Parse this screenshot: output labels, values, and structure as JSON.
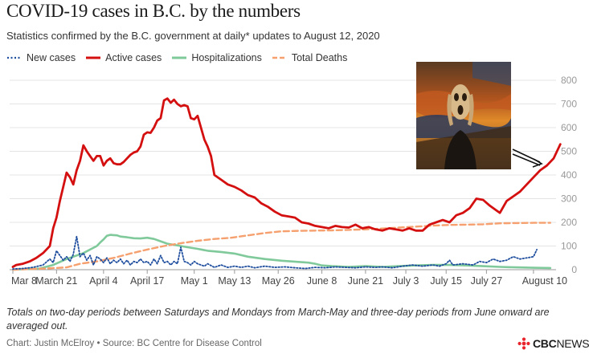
{
  "title": "COVID-19 cases in B.C. by the numbers",
  "subtitle": "Statistics confirmed by the B.C. government at daily* updates to August 12, 2020",
  "footnote": "Totals on two-day periods between Saturdays and Mondays from March-May and three-day periods from June onward are averaged out.",
  "credit": "Chart: Justin McElroy • Source: BC Centre for Disease Control",
  "logo": {
    "brand": "CBC",
    "suffix": "NEWS"
  },
  "image": {
    "subject": "The Scream painting",
    "alt_icon": "scream-painting-image"
  },
  "colors": {
    "new_cases": "#1f4e9e",
    "active_cases": "#d40f0f",
    "hospitalizations": "#7fc99a",
    "total_deaths": "#f5a06e",
    "logo": "#e8242c"
  },
  "chart_data": {
    "type": "line",
    "x_range": [
      "Mar 8",
      "Aug 12"
    ],
    "xticks": [
      {
        "label": "Mar 8",
        "day": 0
      },
      {
        "label": "March 21",
        "day": 13
      },
      {
        "label": "April 4",
        "day": 27
      },
      {
        "label": "April 17",
        "day": 40
      },
      {
        "label": "May 1",
        "day": 54
      },
      {
        "label": "May 13",
        "day": 66
      },
      {
        "label": "May 26",
        "day": 79
      },
      {
        "label": "June 8",
        "day": 92
      },
      {
        "label": "June 21",
        "day": 105
      },
      {
        "label": "July 3",
        "day": 117
      },
      {
        "label": "July 15",
        "day": 129
      },
      {
        "label": "July 27",
        "day": 141
      },
      {
        "label": "August 10",
        "day": 155
      }
    ],
    "ylim": [
      0,
      800
    ],
    "yticks": [
      "0",
      "100",
      "200",
      "300",
      "400",
      "500",
      "600",
      "700",
      "800"
    ],
    "grid": true,
    "legend_position": "top-left",
    "series": [
      {
        "name": "New cases",
        "style": "dotted",
        "colorKey": "new_cases",
        "points": [
          [
            0,
            3
          ],
          [
            3,
            5
          ],
          [
            6,
            10
          ],
          [
            9,
            20
          ],
          [
            11,
            45
          ],
          [
            12,
            30
          ],
          [
            13,
            80
          ],
          [
            14,
            60
          ],
          [
            15,
            40
          ],
          [
            16,
            55
          ],
          [
            17,
            35
          ],
          [
            18,
            65
          ],
          [
            19,
            140
          ],
          [
            20,
            55
          ],
          [
            21,
            70
          ],
          [
            22,
            40
          ],
          [
            23,
            60
          ],
          [
            24,
            20
          ],
          [
            25,
            55
          ],
          [
            26,
            45
          ],
          [
            27,
            30
          ],
          [
            28,
            50
          ],
          [
            29,
            25
          ],
          [
            30,
            40
          ],
          [
            31,
            30
          ],
          [
            32,
            45
          ],
          [
            33,
            25
          ],
          [
            34,
            40
          ],
          [
            35,
            20
          ],
          [
            36,
            35
          ],
          [
            37,
            30
          ],
          [
            38,
            45
          ],
          [
            39,
            30
          ],
          [
            40,
            35
          ],
          [
            41,
            20
          ],
          [
            42,
            45
          ],
          [
            43,
            25
          ],
          [
            44,
            60
          ],
          [
            45,
            30
          ],
          [
            46,
            35
          ],
          [
            47,
            20
          ],
          [
            48,
            35
          ],
          [
            49,
            25
          ],
          [
            50,
            95
          ],
          [
            51,
            35
          ],
          [
            52,
            30
          ],
          [
            53,
            20
          ],
          [
            54,
            35
          ],
          [
            55,
            25
          ],
          [
            56,
            20
          ],
          [
            57,
            15
          ],
          [
            58,
            25
          ],
          [
            60,
            10
          ],
          [
            62,
            20
          ],
          [
            64,
            10
          ],
          [
            66,
            15
          ],
          [
            68,
            10
          ],
          [
            70,
            15
          ],
          [
            72,
            8
          ],
          [
            75,
            15
          ],
          [
            78,
            10
          ],
          [
            81,
            12
          ],
          [
            84,
            8
          ],
          [
            87,
            5
          ],
          [
            90,
            10
          ],
          [
            93,
            8
          ],
          [
            96,
            12
          ],
          [
            99,
            10
          ],
          [
            102,
            8
          ],
          [
            105,
            12
          ],
          [
            108,
            10
          ],
          [
            110,
            12
          ],
          [
            113,
            8
          ],
          [
            116,
            15
          ],
          [
            119,
            20
          ],
          [
            122,
            15
          ],
          [
            125,
            20
          ],
          [
            127,
            15
          ],
          [
            129,
            25
          ],
          [
            130,
            40
          ],
          [
            131,
            20
          ],
          [
            134,
            25
          ],
          [
            137,
            20
          ],
          [
            139,
            35
          ],
          [
            141,
            30
          ],
          [
            143,
            45
          ],
          [
            145,
            35
          ],
          [
            147,
            40
          ],
          [
            149,
            55
          ],
          [
            151,
            45
          ],
          [
            153,
            50
          ],
          [
            155,
            55
          ],
          [
            156,
            85
          ]
        ]
      },
      {
        "name": "Active cases",
        "style": "solid",
        "colorKey": "active_cases",
        "points": [
          [
            0,
            12
          ],
          [
            1,
            20
          ],
          [
            3,
            25
          ],
          [
            5,
            35
          ],
          [
            7,
            50
          ],
          [
            9,
            70
          ],
          [
            11,
            100
          ],
          [
            12,
            175
          ],
          [
            13,
            220
          ],
          [
            14,
            290
          ],
          [
            15,
            350
          ],
          [
            16,
            410
          ],
          [
            17,
            390
          ],
          [
            18,
            360
          ],
          [
            19,
            420
          ],
          [
            20,
            460
          ],
          [
            21,
            525
          ],
          [
            22,
            500
          ],
          [
            23,
            480
          ],
          [
            24,
            460
          ],
          [
            25,
            480
          ],
          [
            26,
            480
          ],
          [
            27,
            440
          ],
          [
            28,
            460
          ],
          [
            29,
            470
          ],
          [
            30,
            450
          ],
          [
            31,
            445
          ],
          [
            32,
            445
          ],
          [
            33,
            455
          ],
          [
            34,
            470
          ],
          [
            35,
            485
          ],
          [
            36,
            495
          ],
          [
            37,
            500
          ],
          [
            38,
            520
          ],
          [
            39,
            570
          ],
          [
            40,
            580
          ],
          [
            41,
            578
          ],
          [
            42,
            600
          ],
          [
            43,
            630
          ],
          [
            44,
            640
          ],
          [
            45,
            715
          ],
          [
            46,
            723
          ],
          [
            47,
            705
          ],
          [
            48,
            718
          ],
          [
            49,
            700
          ],
          [
            50,
            690
          ],
          [
            51,
            695
          ],
          [
            52,
            690
          ],
          [
            53,
            640
          ],
          [
            54,
            635
          ],
          [
            55,
            650
          ],
          [
            56,
            600
          ],
          [
            57,
            550
          ],
          [
            58,
            520
          ],
          [
            59,
            480
          ],
          [
            60,
            400
          ],
          [
            62,
            380
          ],
          [
            64,
            360
          ],
          [
            66,
            350
          ],
          [
            68,
            335
          ],
          [
            70,
            315
          ],
          [
            72,
            305
          ],
          [
            74,
            280
          ],
          [
            76,
            265
          ],
          [
            78,
            245
          ],
          [
            80,
            230
          ],
          [
            82,
            225
          ],
          [
            84,
            220
          ],
          [
            86,
            200
          ],
          [
            88,
            195
          ],
          [
            90,
            185
          ],
          [
            92,
            180
          ],
          [
            94,
            175
          ],
          [
            96,
            185
          ],
          [
            98,
            180
          ],
          [
            100,
            178
          ],
          [
            102,
            190
          ],
          [
            104,
            175
          ],
          [
            106,
            180
          ],
          [
            108,
            170
          ],
          [
            110,
            165
          ],
          [
            112,
            175
          ],
          [
            114,
            170
          ],
          [
            116,
            165
          ],
          [
            118,
            175
          ],
          [
            120,
            165
          ],
          [
            122,
            165
          ],
          [
            124,
            190
          ],
          [
            126,
            200
          ],
          [
            128,
            210
          ],
          [
            130,
            200
          ],
          [
            132,
            230
          ],
          [
            134,
            240
          ],
          [
            136,
            260
          ],
          [
            138,
            300
          ],
          [
            140,
            295
          ],
          [
            142,
            270
          ],
          [
            144,
            250
          ],
          [
            145,
            240
          ],
          [
            147,
            290
          ],
          [
            149,
            310
          ],
          [
            151,
            330
          ],
          [
            153,
            360
          ],
          [
            155,
            390
          ],
          [
            157,
            420
          ],
          [
            159,
            440
          ],
          [
            161,
            470
          ],
          [
            163,
            530
          ]
        ]
      },
      {
        "name": "Hospitalizations",
        "style": "solid",
        "colorKey": "hospitalizations",
        "points": [
          [
            0,
            0
          ],
          [
            8,
            5
          ],
          [
            12,
            20
          ],
          [
            16,
            45
          ],
          [
            19,
            60
          ],
          [
            21,
            70
          ],
          [
            23,
            85
          ],
          [
            25,
            100
          ],
          [
            26,
            115
          ],
          [
            27,
            128
          ],
          [
            28,
            143
          ],
          [
            29,
            147
          ],
          [
            30,
            146
          ],
          [
            31,
            145
          ],
          [
            32,
            140
          ],
          [
            34,
            137
          ],
          [
            36,
            133
          ],
          [
            38,
            132
          ],
          [
            40,
            135
          ],
          [
            42,
            130
          ],
          [
            44,
            120
          ],
          [
            46,
            110
          ],
          [
            48,
            105
          ],
          [
            50,
            100
          ],
          [
            52,
            95
          ],
          [
            55,
            88
          ],
          [
            58,
            80
          ],
          [
            62,
            75
          ],
          [
            66,
            68
          ],
          [
            70,
            55
          ],
          [
            75,
            45
          ],
          [
            80,
            38
          ],
          [
            85,
            33
          ],
          [
            88,
            30
          ],
          [
            90,
            25
          ],
          [
            92,
            18
          ],
          [
            95,
            15
          ],
          [
            100,
            12
          ],
          [
            105,
            15
          ],
          [
            110,
            12
          ],
          [
            115,
            15
          ],
          [
            120,
            18
          ],
          [
            125,
            20
          ],
          [
            130,
            20
          ],
          [
            135,
            18
          ],
          [
            140,
            15
          ],
          [
            145,
            12
          ],
          [
            150,
            10
          ],
          [
            155,
            8
          ],
          [
            160,
            7
          ]
        ]
      },
      {
        "name": "Total Deaths",
        "style": "dashed",
        "colorKey": "total_deaths",
        "points": [
          [
            0,
            0
          ],
          [
            10,
            5
          ],
          [
            16,
            10
          ],
          [
            20,
            25
          ],
          [
            25,
            35
          ],
          [
            30,
            50
          ],
          [
            35,
            68
          ],
          [
            40,
            85
          ],
          [
            45,
            100
          ],
          [
            50,
            112
          ],
          [
            55,
            122
          ],
          [
            60,
            130
          ],
          [
            65,
            135
          ],
          [
            70,
            145
          ],
          [
            75,
            155
          ],
          [
            80,
            162
          ],
          [
            85,
            164
          ],
          [
            90,
            165
          ],
          [
            95,
            166
          ],
          [
            100,
            168
          ],
          [
            105,
            170
          ],
          [
            110,
            174
          ],
          [
            115,
            178
          ],
          [
            120,
            182
          ],
          [
            125,
            186
          ],
          [
            130,
            189
          ],
          [
            135,
            190
          ],
          [
            140,
            192
          ],
          [
            145,
            196
          ],
          [
            150,
            197
          ],
          [
            155,
            198
          ],
          [
            160,
            198
          ]
        ]
      }
    ]
  }
}
